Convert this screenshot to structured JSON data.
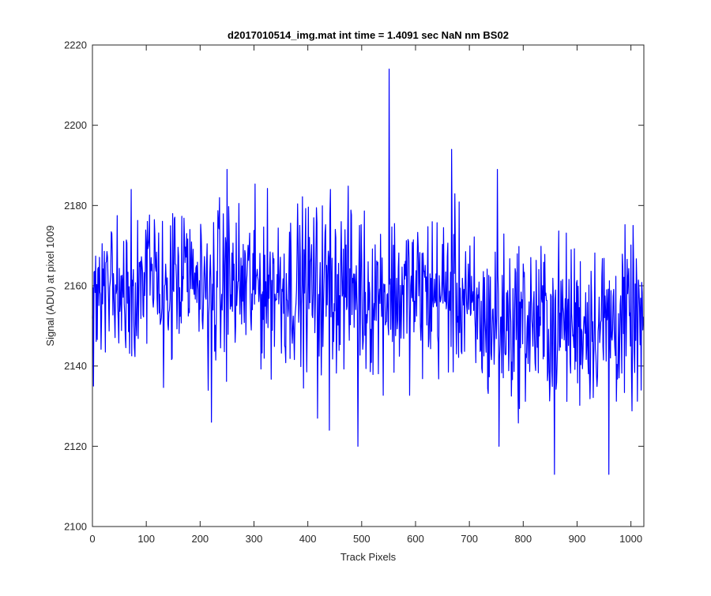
{
  "chart_data": {
    "type": "line",
    "title": "d2017010514_img.mat int time = 1.4091 sec  NaN nm BS02",
    "xlabel": "Track Pixels",
    "ylabel": "Signal (ADU) at pixel 1009",
    "xlim": [
      0,
      1024
    ],
    "ylim": [
      2100,
      2220
    ],
    "xticks": [
      0,
      100,
      200,
      300,
      400,
      500,
      600,
      700,
      800,
      900,
      1000
    ],
    "yticks": [
      2100,
      2120,
      2140,
      2160,
      2180,
      2200,
      2220
    ],
    "xtick_labels": [
      "0",
      "100",
      "200",
      "300",
      "400",
      "500",
      "600",
      "700",
      "800",
      "900",
      "1000"
    ],
    "ytick_labels": [
      "2100",
      "2120",
      "2140",
      "2160",
      "2180",
      "2200",
      "2220"
    ],
    "grid": false,
    "legend": "none",
    "series": [
      {
        "color": "#0000ff",
        "n_points": 1024,
        "approx_mean_by_segment": [
          {
            "x": [
              0,
              500
            ],
            "mean": 2160
          },
          {
            "x": [
              500,
              700
            ],
            "mean": 2158
          },
          {
            "x": [
              700,
              1024
            ],
            "mean": 2151
          }
        ],
        "approx_noise_amplitude": 10,
        "peaks": [
          {
            "x": 72,
            "y": 2184
          },
          {
            "x": 250,
            "y": 2189
          },
          {
            "x": 442,
            "y": 2184
          },
          {
            "x": 551,
            "y": 2214
          },
          {
            "x": 667,
            "y": 2194
          },
          {
            "x": 752,
            "y": 2189
          },
          {
            "x": 959,
            "y": 2180
          }
        ],
        "troughs": [
          {
            "x": 2,
            "y": 2135
          },
          {
            "x": 221,
            "y": 2126
          },
          {
            "x": 418,
            "y": 2127
          },
          {
            "x": 440,
            "y": 2124
          },
          {
            "x": 493,
            "y": 2120
          },
          {
            "x": 755,
            "y": 2120
          },
          {
            "x": 858,
            "y": 2113
          },
          {
            "x": 959,
            "y": 2113
          },
          {
            "x": 1019,
            "y": 2134
          }
        ]
      }
    ]
  }
}
